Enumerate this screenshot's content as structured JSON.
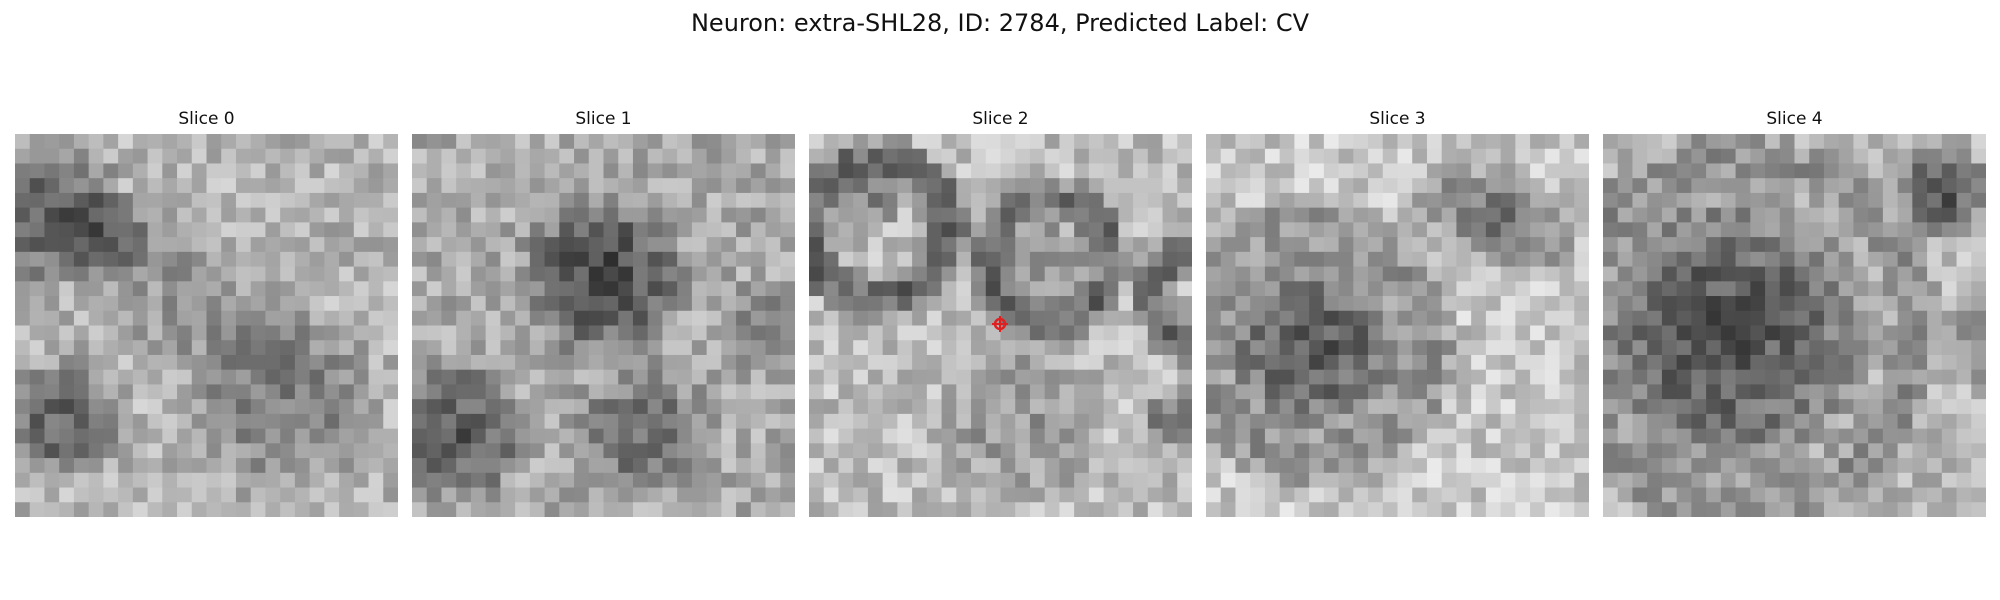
{
  "figure": {
    "title": "Neuron: extra-SHL28, ID: 2784, Predicted Label: CV"
  },
  "panels": [
    {
      "title": "Slice 0"
    },
    {
      "title": "Slice 1"
    },
    {
      "title": "Slice 2"
    },
    {
      "title": "Slice 3"
    },
    {
      "title": "Slice 4"
    }
  ],
  "colors": {
    "marker": "#e02020",
    "background": "#ffffff"
  },
  "marker": {
    "panel": 2,
    "icon": "crosshair-marker-icon"
  }
}
